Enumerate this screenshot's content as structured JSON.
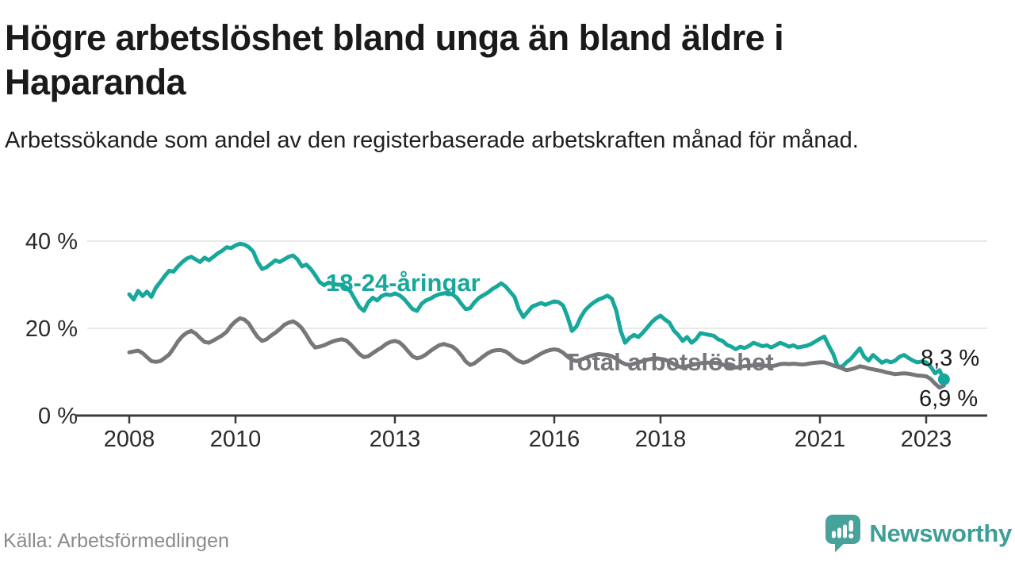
{
  "chart_data": {
    "type": "line",
    "title": "Högre arbetslöshet bland unga än bland äldre i Haparanda",
    "subtitle": "Arbetssökande som andel av den registerbaserade arbetskraften månad för månad.",
    "source": "Källa: Arbetsförmedlingen",
    "x_frequency": "monthly",
    "x_start": "2008-01",
    "x_end": "2023-05",
    "x_ticks": [
      2008,
      2010,
      2013,
      2016,
      2018,
      2021,
      2023
    ],
    "y_ticks": [
      {
        "value": 0,
        "label": "0 %"
      },
      {
        "value": 20,
        "label": "20 %"
      },
      {
        "value": 40,
        "label": "40 %"
      }
    ],
    "ylim": [
      0,
      44
    ],
    "grid": "horizontal-only",
    "legend": "inline-labels-on-lines",
    "colors": {
      "young": "#17a79b",
      "total": "#77777b",
      "axis": "#3b3b3b",
      "gridline": "#e2e2e2",
      "tick_text": "#2b2b2b",
      "end_label_text": "#1a1a1a"
    },
    "series": [
      {
        "name": "18-24-åringar",
        "color": "#17a79b",
        "end_label": "8,3 %",
        "end_value": 8.3,
        "values": [
          27.8,
          26.6,
          28.6,
          27.4,
          28.4,
          27.2,
          29.3,
          30.6,
          32.0,
          33.2,
          33.0,
          34.2,
          35.2,
          36.0,
          36.4,
          35.8,
          35.2,
          36.2,
          35.6,
          36.4,
          37.2,
          37.8,
          38.6,
          38.4,
          39.0,
          39.4,
          39.2,
          38.6,
          37.6,
          35.2,
          33.6,
          34.0,
          34.8,
          35.6,
          35.2,
          35.8,
          36.4,
          36.7,
          35.8,
          34.2,
          34.6,
          33.6,
          32.2,
          30.6,
          29.9,
          30.5,
          30.2,
          30.0,
          30.0,
          29.4,
          28.4,
          26.6,
          24.9,
          24.0,
          26.0,
          27.0,
          26.4,
          27.4,
          27.8,
          27.6,
          28.0,
          27.6,
          26.8,
          25.6,
          24.4,
          24.0,
          25.6,
          26.4,
          26.8,
          27.4,
          27.8,
          28.0,
          28.2,
          27.8,
          27.0,
          25.6,
          24.4,
          24.6,
          26.0,
          27.0,
          27.6,
          28.2,
          29.0,
          29.6,
          30.3,
          29.6,
          28.4,
          27.2,
          24.4,
          22.6,
          23.8,
          25.0,
          25.4,
          25.8,
          25.4,
          25.8,
          26.2,
          26.0,
          25.2,
          22.6,
          19.4,
          20.4,
          22.6,
          24.2,
          25.2,
          26.0,
          26.6,
          27.0,
          27.5,
          26.8,
          24.0,
          19.4,
          16.7,
          17.8,
          18.5,
          18.0,
          19.0,
          20.2,
          21.4,
          22.3,
          22.9,
          22.0,
          21.3,
          19.5,
          18.5,
          17.1,
          18.0,
          16.7,
          17.5,
          18.9,
          18.7,
          18.5,
          18.3,
          17.5,
          17.1,
          16.2,
          15.8,
          15.2,
          15.8,
          15.5,
          16.0,
          16.7,
          16.3,
          15.9,
          16.1,
          15.6,
          16.1,
          16.7,
          16.3,
          15.8,
          16.1,
          15.6,
          15.8,
          16.0,
          16.4,
          17.0,
          17.6,
          18.1,
          16.0,
          14.1,
          11.3,
          11.2,
          12.2,
          13.0,
          14.2,
          15.4,
          13.5,
          12.6,
          13.9,
          13.0,
          12.1,
          12.6,
          12.2,
          12.6,
          13.5,
          13.9,
          13.2,
          12.6,
          12.2,
          12.4,
          12.2,
          11.2,
          9.7,
          10.4,
          8.3
        ]
      },
      {
        "name": "Total arbetslöshet",
        "color": "#77777b",
        "end_label": "6,9 %",
        "end_value": 6.9,
        "values": [
          14.5,
          14.7,
          14.9,
          14.3,
          13.4,
          12.5,
          12.3,
          12.5,
          13.2,
          14.0,
          15.4,
          17.0,
          18.2,
          19.0,
          19.4,
          18.8,
          17.8,
          16.9,
          16.7,
          17.2,
          17.8,
          18.4,
          19.2,
          20.6,
          21.6,
          22.3,
          22.0,
          21.1,
          19.5,
          18.0,
          17.1,
          17.5,
          18.3,
          19.0,
          19.8,
          20.8,
          21.3,
          21.6,
          21.0,
          20.0,
          18.5,
          16.8,
          15.6,
          15.8,
          16.1,
          16.6,
          17.0,
          17.3,
          17.5,
          17.2,
          16.3,
          15.2,
          14.1,
          13.4,
          13.6,
          14.3,
          15.0,
          15.6,
          16.4,
          16.9,
          17.1,
          16.8,
          15.9,
          14.7,
          13.6,
          13.1,
          13.4,
          14.0,
          14.8,
          15.5,
          16.1,
          16.4,
          16.1,
          15.8,
          15.0,
          13.8,
          12.4,
          11.6,
          12.0,
          12.8,
          13.6,
          14.3,
          14.8,
          15.0,
          15.0,
          14.7,
          14.0,
          13.1,
          12.5,
          12.1,
          12.4,
          13.0,
          13.6,
          14.2,
          14.7,
          15.0,
          15.2,
          15.0,
          14.4,
          13.5,
          12.8,
          12.5,
          12.8,
          13.2,
          13.6,
          13.9,
          14.1,
          14.0,
          13.9,
          13.6,
          13.0,
          12.3,
          11.8,
          11.6,
          11.9,
          12.2,
          12.5,
          12.8,
          13.0,
          13.1,
          13.0,
          12.8,
          12.4,
          11.8,
          11.3,
          11.0,
          11.3,
          11.6,
          11.8,
          12.0,
          12.1,
          12.1,
          12.1,
          12.0,
          11.7,
          11.4,
          11.1,
          11.0,
          11.2,
          11.3,
          11.4,
          11.5,
          11.5,
          11.4,
          11.4,
          11.3,
          11.5,
          11.8,
          11.9,
          11.8,
          11.9,
          11.8,
          11.7,
          11.8,
          12.0,
          12.1,
          12.2,
          12.2,
          11.9,
          11.5,
          11.2,
          10.8,
          10.4,
          10.6,
          10.9,
          11.3,
          11.1,
          10.8,
          10.6,
          10.4,
          10.2,
          9.9,
          9.7,
          9.5,
          9.6,
          9.7,
          9.6,
          9.4,
          9.2,
          9.1,
          9.0,
          8.4,
          7.3,
          6.4,
          6.9
        ]
      }
    ]
  },
  "logo": {
    "brand": "Newsworthy",
    "icon": "newsworthy-speech-bubble-bar-chart-icon",
    "color": "#3e9e98"
  }
}
